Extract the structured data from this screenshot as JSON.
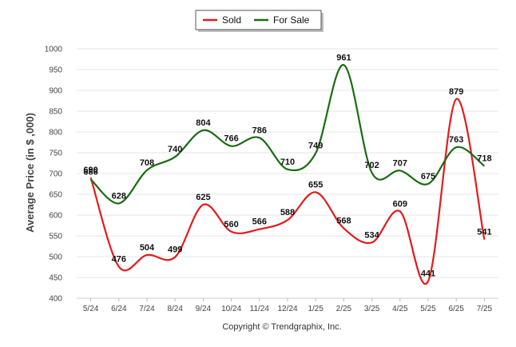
{
  "chart_data": {
    "type": "line",
    "title": "",
    "xlabel": "",
    "ylabel": "Average Price (in $ ,000)",
    "categories": [
      "5/24",
      "6/24",
      "7/24",
      "8/24",
      "9/24",
      "10/24",
      "11/24",
      "12/24",
      "1/25",
      "2/25",
      "3/25",
      "4/25",
      "5/25",
      "6/25",
      "7/25"
    ],
    "ylim": [
      400,
      1000
    ],
    "yticks": [
      400,
      450,
      500,
      550,
      600,
      650,
      700,
      750,
      800,
      850,
      900,
      950,
      1000
    ],
    "grid": true,
    "legend_placement": "top-center",
    "series": [
      {
        "name": "Sold",
        "color": "#e41a1c",
        "values": [
          690,
          476,
          504,
          499,
          625,
          560,
          566,
          588,
          655,
          568,
          534,
          609,
          441,
          879,
          541
        ]
      },
      {
        "name": "For Sale",
        "color": "#1a6b12",
        "values": [
          686,
          628,
          708,
          740,
          804,
          766,
          786,
          710,
          749,
          961,
          702,
          707,
          675,
          763,
          718
        ]
      }
    ]
  },
  "footer": "Copyright © Trendgraphix, Inc."
}
